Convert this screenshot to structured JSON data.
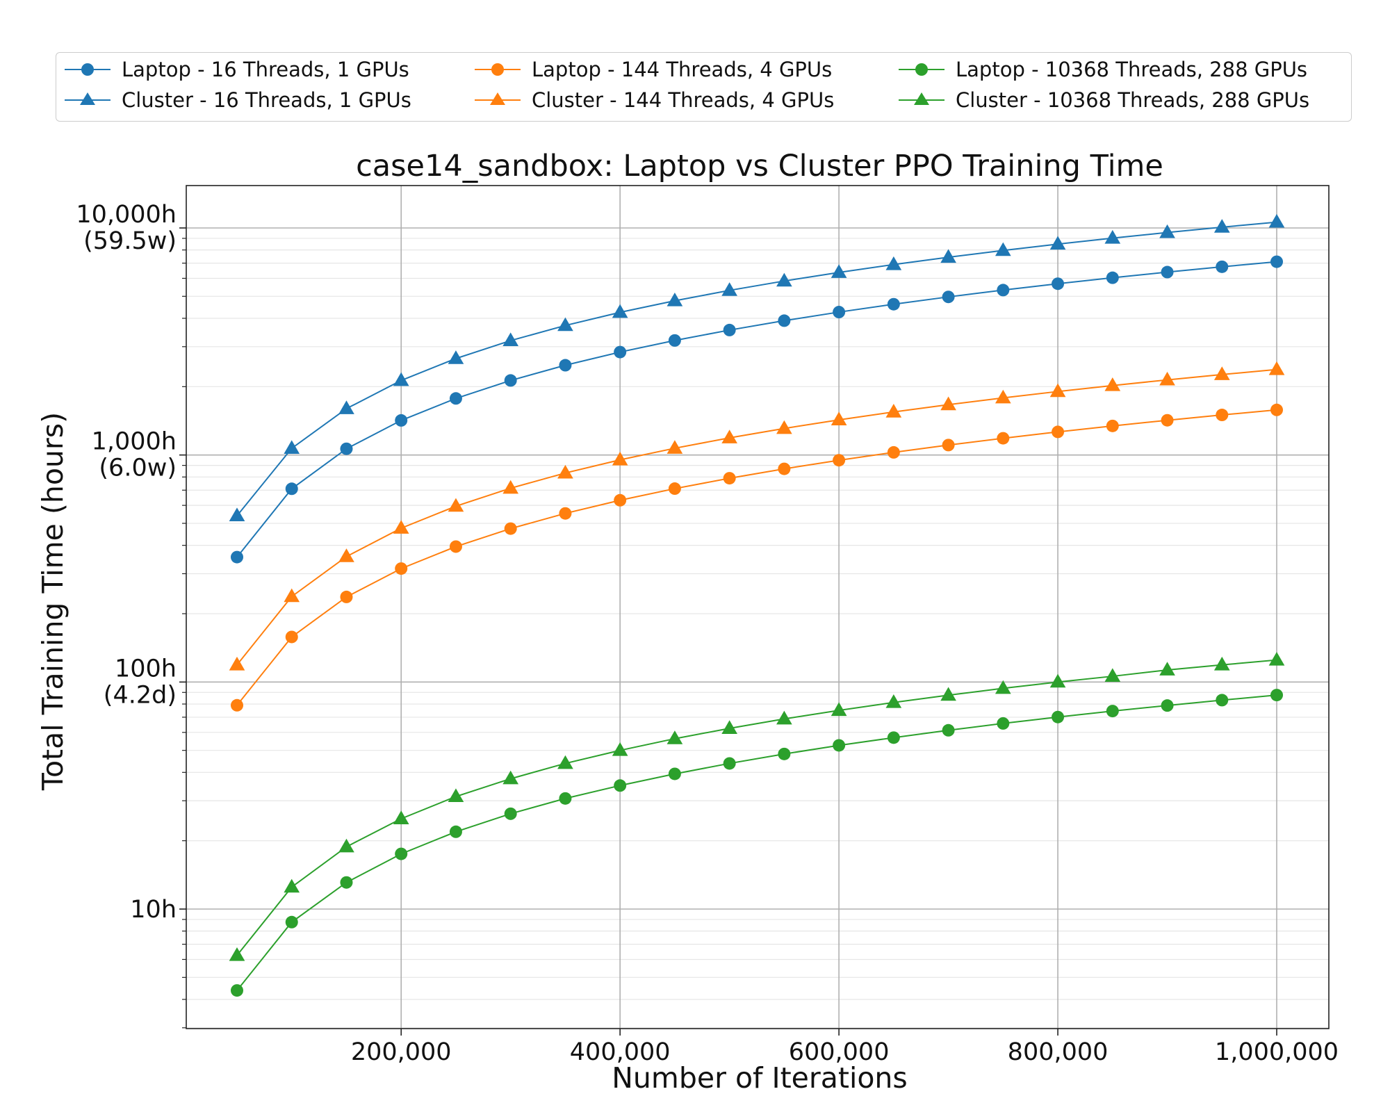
{
  "chart_data": {
    "type": "line",
    "title": "case14_sandbox: Laptop vs Cluster PPO Training Time",
    "xlabel": "Number of Iterations",
    "ylabel": "Total Training Time (hours)",
    "xlim": [
      0,
      1000000
    ],
    "ylim": [
      3.5,
      16000
    ],
    "yscale": "log",
    "grid": true,
    "legend_position": "top, above plot",
    "x_ticks": [
      {
        "value": 200000,
        "label": "200,000"
      },
      {
        "value": 400000,
        "label": "400,000"
      },
      {
        "value": 600000,
        "label": "600,000"
      },
      {
        "value": 800000,
        "label": "800,000"
      },
      {
        "value": 1000000,
        "label": "1,000,000"
      }
    ],
    "y_ticks": [
      {
        "value": 10,
        "label": "10h",
        "sublabel": ""
      },
      {
        "value": 100,
        "label": "100h",
        "sublabel": "(4.2d)"
      },
      {
        "value": 1000,
        "label": "1,000h",
        "sublabel": "(6.0w)"
      },
      {
        "value": 10000,
        "label": "10,000h",
        "sublabel": "(59.5w)"
      }
    ],
    "x": [
      50000,
      100000,
      150000,
      200000,
      250000,
      300000,
      350000,
      400000,
      450000,
      500000,
      550000,
      600000,
      650000,
      700000,
      750000,
      800000,
      850000,
      900000,
      950000,
      1000000
    ],
    "series": [
      {
        "name": "Laptop - 16 Threads, 1 GPUs",
        "color": "#1f77b4",
        "marker": "circle",
        "values": [
          355,
          710,
          1065,
          1420,
          1775,
          2130,
          2485,
          2840,
          3195,
          3550,
          3905,
          4260,
          4615,
          4970,
          5325,
          5680,
          6035,
          6390,
          6745,
          7100
        ]
      },
      {
        "name": "Cluster - 16 Threads, 1 GPUs",
        "color": "#1f77b4",
        "marker": "triangle",
        "values": [
          540,
          1070,
          1600,
          2130,
          2660,
          3190,
          3720,
          4250,
          4780,
          5310,
          5840,
          6370,
          6900,
          7430,
          7960,
          8490,
          9020,
          9550,
          10080,
          10610
        ]
      },
      {
        "name": "Laptop - 144 Threads, 4 GPUs",
        "color": "#ff7f0e",
        "marker": "circle",
        "values": [
          79,
          158,
          237,
          316,
          395,
          474,
          553,
          632,
          711,
          790,
          869,
          948,
          1027,
          1106,
          1185,
          1264,
          1343,
          1422,
          1501,
          1580
        ]
      },
      {
        "name": "Cluster - 144 Threads, 4 GPUs",
        "color": "#ff7f0e",
        "marker": "triangle",
        "values": [
          119,
          238,
          357,
          476,
          595,
          714,
          833,
          952,
          1071,
          1190,
          1309,
          1428,
          1547,
          1666,
          1785,
          1904,
          2023,
          2142,
          2261,
          2380
        ]
      },
      {
        "name": "Laptop - 10368 Threads, 288 GPUs",
        "color": "#2ca02c",
        "marker": "circle",
        "values": [
          4.38,
          8.76,
          13.1,
          17.5,
          21.9,
          26.3,
          30.7,
          35.0,
          39.4,
          43.8,
          48.2,
          52.6,
          56.9,
          61.3,
          65.7,
          70.1,
          74.5,
          78.8,
          83.2,
          87.6
        ]
      },
      {
        "name": "Cluster - 10368 Threads, 288 GPUs",
        "color": "#2ca02c",
        "marker": "triangle",
        "values": [
          6.25,
          12.5,
          18.8,
          25.0,
          31.3,
          37.5,
          43.8,
          50.0,
          56.3,
          62.5,
          68.8,
          75.0,
          81.3,
          87.5,
          93.8,
          100,
          106,
          113,
          119,
          125
        ]
      }
    ]
  }
}
